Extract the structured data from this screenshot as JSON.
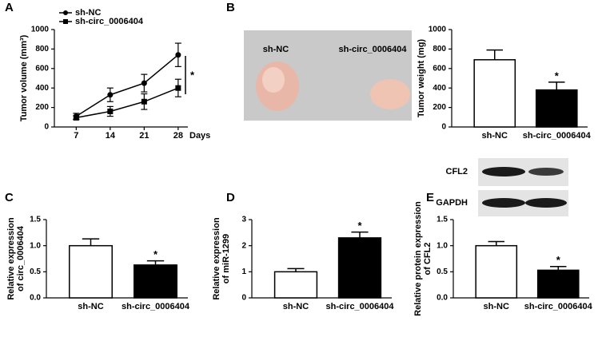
{
  "panel_labels": [
    "A",
    "B",
    "C",
    "D",
    "E"
  ],
  "photo": {
    "labels": [
      "sh-NC",
      "sh-circ_0006404"
    ]
  },
  "blot": {
    "labels": [
      "CFL2",
      "GAPDH"
    ]
  },
  "chart_data": [
    {
      "type": "line",
      "ylabel": [
        "Tumor volume (mm³)"
      ],
      "xlabel": "Days",
      "x": [
        7,
        14,
        21,
        28
      ],
      "xlim": [
        2.5,
        30
      ],
      "xticks": [
        7,
        14,
        21,
        28
      ],
      "ylim": [
        0,
        1000
      ],
      "yticks": [
        0,
        200,
        400,
        600,
        800,
        1000
      ],
      "legend": "upper left",
      "annotation": "*",
      "series": [
        {
          "name": "sh-NC",
          "color": "#000000",
          "marker": "circle",
          "values": [
            110,
            330,
            450,
            740
          ],
          "errors": [
            30,
            70,
            90,
            120
          ]
        },
        {
          "name": "sh-circ_0006404",
          "color": "#000000",
          "marker": "square",
          "values": [
            95,
            160,
            260,
            400
          ],
          "errors": [
            20,
            50,
            80,
            90
          ]
        }
      ]
    },
    {
      "type": "bar",
      "ylabel": [
        "Tumor weight (mg)"
      ],
      "categories": [
        "sh-NC",
        "sh-circ_0006404"
      ],
      "values": [
        690,
        380
      ],
      "errors": [
        100,
        80
      ],
      "colors": [
        "#ffffff",
        "#000000"
      ],
      "ylim": [
        0,
        1000
      ],
      "yticks": [
        0,
        200,
        400,
        600,
        800,
        1000
      ],
      "annotation": "*"
    },
    {
      "type": "bar",
      "ylabel": [
        "Relative expression",
        "of circ_0006404"
      ],
      "categories": [
        "sh-NC",
        "sh-circ_0006404"
      ],
      "values": [
        1.0,
        0.63
      ],
      "errors": [
        0.13,
        0.08
      ],
      "colors": [
        "#ffffff",
        "#000000"
      ],
      "ylim": [
        0,
        1.5
      ],
      "yticks": [
        {
          "value": 0,
          "label": "0.0"
        },
        0.5,
        {
          "value": 1,
          "label": "1.0"
        },
        1.5
      ],
      "annotation": "*"
    },
    {
      "type": "bar",
      "ylabel": [
        "Relative expression",
        "of miR-1299"
      ],
      "categories": [
        "sh-NC",
        "sh-circ_0006404"
      ],
      "values": [
        1.0,
        2.3
      ],
      "errors": [
        0.12,
        0.22
      ],
      "colors": [
        "#ffffff",
        "#000000"
      ],
      "ylim": [
        0,
        3
      ],
      "yticks": [
        0,
        1,
        2,
        3
      ],
      "annotation": "*"
    },
    {
      "type": "bar",
      "ylabel": [
        "Relative protein expression",
        "of CFL2"
      ],
      "categories": [
        "sh-NC",
        "sh-circ_0006404"
      ],
      "values": [
        1.0,
        0.53
      ],
      "errors": [
        0.08,
        0.07
      ],
      "colors": [
        "#ffffff",
        "#000000"
      ],
      "ylim": [
        0,
        1.5
      ],
      "yticks": [
        {
          "value": 0,
          "label": "0.0"
        },
        0.5,
        {
          "value": 1,
          "label": "1.0"
        },
        1.5
      ],
      "annotation": "*"
    }
  ]
}
